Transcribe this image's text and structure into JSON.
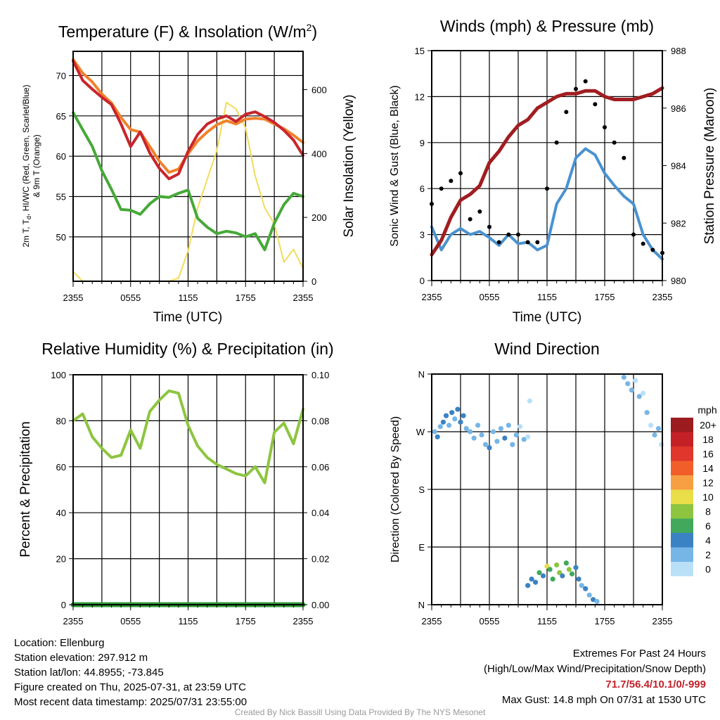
{
  "chart_data": [
    {
      "type": "line",
      "title": "Temperature (F) & Insolation (W/m²)",
      "title_parts": [
        "Temperature (F) & Insolation (W/m",
        "2",
        ")"
      ],
      "xlabel": "Time (UTC)",
      "ylabel_lines": [
        "2m T, Tₐ, HI/WC (Red, Green, Scarlet/Blue)",
        "& 9m T (Orange)"
      ],
      "ylabel_parts": [
        "2m T, T",
        "d",
        ", HI/WC (Red, Green, Scarlet/Blue)"
      ],
      "ylabel_line2": "& 9m T (Orange)",
      "y2label": "Solar Insolation (Yellow)",
      "x_ticks": [
        "2355",
        "0555",
        "1155",
        "1755",
        "2355"
      ],
      "x": [
        0,
        1,
        2,
        3,
        4,
        5,
        6,
        7,
        8,
        9,
        10,
        11,
        12,
        13,
        14,
        15,
        16,
        17,
        18,
        19,
        20,
        21,
        22,
        23,
        24
      ],
      "ylim": [
        44.5,
        73
      ],
      "y_ticks": [
        50,
        55,
        60,
        65,
        70
      ],
      "y2lim": [
        0,
        720
      ],
      "y2_ticks": [
        0,
        200,
        400,
        600
      ],
      "series": [
        {
          "name": "2m T",
          "color": "#c9252c",
          "axis": "left",
          "values": [
            71.8,
            69.4,
            68.3,
            67.3,
            66.4,
            64.0,
            61.2,
            63.0,
            60.4,
            58.5,
            57.2,
            57.8,
            60.6,
            62.7,
            64.0,
            64.6,
            65.0,
            64.3,
            65.2,
            65.5,
            64.9,
            64.2,
            63.2,
            62.0,
            60.1
          ]
        },
        {
          "name": "9m T",
          "color": "#f0822d",
          "axis": "left",
          "values": [
            72.0,
            70.3,
            69.2,
            67.7,
            66.6,
            64.8,
            63.3,
            63.0,
            61.2,
            59.4,
            58.0,
            58.4,
            60.3,
            61.9,
            63.0,
            63.9,
            64.4,
            64.0,
            64.6,
            64.7,
            64.6,
            64.0,
            63.4,
            62.6,
            61.7
          ]
        },
        {
          "name": "Td",
          "color": "#46a938",
          "axis": "left",
          "values": [
            65.4,
            63.3,
            61.2,
            58.2,
            55.9,
            53.4,
            53.3,
            52.8,
            54.1,
            55.0,
            54.9,
            55.4,
            55.8,
            52.3,
            51.2,
            50.4,
            50.7,
            50.5,
            50.0,
            50.4,
            48.4,
            51.7,
            54.0,
            55.4,
            55.0
          ]
        },
        {
          "name": "Solar Insolation",
          "color": "#f2dc5a",
          "axis": "right",
          "values": [
            30,
            0,
            0,
            0,
            0,
            0,
            0,
            0,
            0,
            0,
            0,
            10,
            95,
            230,
            320,
            410,
            560,
            540,
            480,
            330,
            230,
            180,
            60,
            100,
            40
          ]
        }
      ]
    },
    {
      "type": "line",
      "title": "Winds (mph) & Pressure (mb)",
      "xlabel": "Time (UTC)",
      "ylabel": "Sonic Wind & Gust (Blue, Black)",
      "y2label": "Station Pressure (Maroon)",
      "x_ticks": [
        "2355",
        "0555",
        "1155",
        "1755",
        "2355"
      ],
      "x": [
        0,
        1,
        2,
        3,
        4,
        5,
        6,
        7,
        8,
        9,
        10,
        11,
        12,
        13,
        14,
        15,
        16,
        17,
        18,
        19,
        20,
        21,
        22,
        23,
        24
      ],
      "ylim": [
        0,
        15
      ],
      "y_ticks": [
        0,
        3,
        6,
        9,
        12,
        15
      ],
      "y2lim": [
        980,
        988
      ],
      "y2_ticks": [
        980,
        982,
        984,
        986,
        988
      ],
      "series": [
        {
          "name": "Sonic Wind",
          "color": "#4a92cf",
          "axis": "left",
          "values": [
            3.5,
            2.0,
            3.0,
            3.4,
            3.0,
            3.2,
            2.8,
            2.3,
            3.0,
            2.4,
            2.5,
            2.0,
            2.3,
            5.0,
            6.0,
            8.0,
            8.6,
            8.2,
            7.0,
            6.2,
            5.5,
            5.0,
            3.0,
            2.0,
            1.4
          ]
        },
        {
          "name": "Gust",
          "color": "#000000",
          "axis": "left",
          "values": [
            5.0,
            6.0,
            6.5,
            7.0,
            4.0,
            4.5,
            3.5,
            2.5,
            3.0,
            3.0,
            2.5,
            2.5,
            6.0,
            9.0,
            11.0,
            12.5,
            13.0,
            11.5,
            10.0,
            9.0,
            8.0,
            3.0,
            2.4,
            2.0,
            1.8
          ]
        },
        {
          "name": "Station Pressure",
          "color": "#a11d21",
          "axis": "right",
          "values": [
            980.9,
            981.4,
            982.2,
            982.8,
            983.0,
            983.3,
            984.1,
            984.5,
            985.0,
            985.4,
            985.6,
            986.0,
            986.2,
            986.4,
            986.5,
            986.5,
            986.6,
            986.6,
            986.4,
            986.3,
            986.3,
            986.3,
            986.4,
            986.5,
            986.7
          ]
        }
      ]
    },
    {
      "type": "line",
      "title": "Relative Humidity (%) & Precipitation (in)",
      "ylabel": "Percent & Precipitation",
      "x_ticks": [
        "2355",
        "0555",
        "1155",
        "1755",
        "2355"
      ],
      "x": [
        0,
        1,
        2,
        3,
        4,
        5,
        6,
        7,
        8,
        9,
        10,
        11,
        12,
        13,
        14,
        15,
        16,
        17,
        18,
        19,
        20,
        21,
        22,
        23,
        24
      ],
      "ylim": [
        0,
        100
      ],
      "y_ticks": [
        0,
        20,
        40,
        60,
        80,
        100
      ],
      "y2lim": [
        0,
        0.1
      ],
      "y2_ticks": [
        "0.00",
        "0.02",
        "0.04",
        "0.06",
        "0.08",
        "0.10"
      ],
      "series": [
        {
          "name": "Relative Humidity",
          "color": "#8dc540",
          "axis": "left",
          "values": [
            80,
            83,
            73,
            68,
            64,
            65,
            76,
            68,
            84,
            89,
            93,
            92,
            78,
            69,
            64,
            61,
            59,
            57,
            56,
            60,
            53,
            75,
            79,
            70,
            85
          ]
        },
        {
          "name": "Precipitation",
          "color": "#2f9a3a",
          "axis": "right",
          "values": [
            0,
            0,
            0,
            0,
            0,
            0,
            0,
            0,
            0,
            0,
            0,
            0,
            0,
            0,
            0,
            0,
            0,
            0,
            0,
            0,
            0,
            0,
            0,
            0,
            0
          ]
        }
      ]
    },
    {
      "type": "scatter",
      "title": "Wind Direction",
      "ylabel": "Direction (Colored By Speed)",
      "x_ticks": [
        "2355",
        "0555",
        "1155",
        "1755",
        "2355"
      ],
      "ylim": [
        0,
        360
      ],
      "y_ticks": [
        "N",
        "E",
        "S",
        "W",
        "N"
      ],
      "points": [
        {
          "x": 0.3,
          "y": 270,
          "v": 3
        },
        {
          "x": 0.6,
          "y": 262,
          "v": 4
        },
        {
          "x": 0.9,
          "y": 278,
          "v": 3
        },
        {
          "x": 1.2,
          "y": 285,
          "v": 4
        },
        {
          "x": 1.5,
          "y": 295,
          "v": 5
        },
        {
          "x": 1.8,
          "y": 280,
          "v": 3
        },
        {
          "x": 2.1,
          "y": 300,
          "v": 4
        },
        {
          "x": 2.4,
          "y": 290,
          "v": 3
        },
        {
          "x": 2.7,
          "y": 305,
          "v": 5
        },
        {
          "x": 3.0,
          "y": 285,
          "v": 4
        },
        {
          "x": 3.3,
          "y": 295,
          "v": 4
        },
        {
          "x": 3.6,
          "y": 275,
          "v": 3
        },
        {
          "x": 4.0,
          "y": 270,
          "v": 2
        },
        {
          "x": 4.4,
          "y": 260,
          "v": 3
        },
        {
          "x": 4.8,
          "y": 280,
          "v": 2
        },
        {
          "x": 5.2,
          "y": 265,
          "v": 3
        },
        {
          "x": 5.6,
          "y": 250,
          "v": 2
        },
        {
          "x": 6.0,
          "y": 245,
          "v": 4
        },
        {
          "x": 6.4,
          "y": 270,
          "v": 3
        },
        {
          "x": 6.8,
          "y": 255,
          "v": 2
        },
        {
          "x": 7.2,
          "y": 275,
          "v": 3
        },
        {
          "x": 7.6,
          "y": 260,
          "v": 4
        },
        {
          "x": 8.0,
          "y": 280,
          "v": 2
        },
        {
          "x": 8.4,
          "y": 250,
          "v": 3
        },
        {
          "x": 8.8,
          "y": 265,
          "v": 2
        },
        {
          "x": 9.2,
          "y": 278,
          "v": 1
        },
        {
          "x": 9.6,
          "y": 258,
          "v": 3
        },
        {
          "x": 10.0,
          "y": 262,
          "v": 1
        },
        {
          "x": 10.2,
          "y": 318,
          "v": 1
        },
        {
          "x": 10.0,
          "y": 30,
          "v": 4
        },
        {
          "x": 10.4,
          "y": 40,
          "v": 4
        },
        {
          "x": 10.8,
          "y": 35,
          "v": 5
        },
        {
          "x": 11.2,
          "y": 50,
          "v": 6
        },
        {
          "x": 11.6,
          "y": 45,
          "v": 4
        },
        {
          "x": 12.0,
          "y": 60,
          "v": 10
        },
        {
          "x": 12.3,
          "y": 55,
          "v": 7
        },
        {
          "x": 12.6,
          "y": 40,
          "v": 6
        },
        {
          "x": 13.0,
          "y": 62,
          "v": 8
        },
        {
          "x": 13.3,
          "y": 50,
          "v": 9
        },
        {
          "x": 13.6,
          "y": 45,
          "v": 5
        },
        {
          "x": 14.0,
          "y": 65,
          "v": 6
        },
        {
          "x": 14.3,
          "y": 55,
          "v": 8
        },
        {
          "x": 14.6,
          "y": 48,
          "v": 7
        },
        {
          "x": 15.0,
          "y": 58,
          "v": 5
        },
        {
          "x": 15.3,
          "y": 40,
          "v": 4
        },
        {
          "x": 15.6,
          "y": 30,
          "v": 3
        },
        {
          "x": 16.0,
          "y": 25,
          "v": 4
        },
        {
          "x": 16.4,
          "y": 15,
          "v": 3
        },
        {
          "x": 16.8,
          "y": 8,
          "v": 4
        },
        {
          "x": 17.2,
          "y": 5,
          "v": 2
        },
        {
          "x": 20.0,
          "y": 355,
          "v": 2
        },
        {
          "x": 20.4,
          "y": 345,
          "v": 3
        },
        {
          "x": 20.8,
          "y": 335,
          "v": 2
        },
        {
          "x": 21.2,
          "y": 350,
          "v": 1
        },
        {
          "x": 21.6,
          "y": 325,
          "v": 3
        },
        {
          "x": 22.0,
          "y": 330,
          "v": 1
        },
        {
          "x": 22.4,
          "y": 300,
          "v": 2
        },
        {
          "x": 22.8,
          "y": 280,
          "v": 1
        },
        {
          "x": 23.2,
          "y": 265,
          "v": 2
        },
        {
          "x": 23.6,
          "y": 275,
          "v": 3
        },
        {
          "x": 23.9,
          "y": 250,
          "v": 1
        }
      ],
      "legend_title": "mph",
      "legend": [
        {
          "label": "20+",
          "color": "#9c1b1e"
        },
        {
          "label": "18",
          "color": "#c42127"
        },
        {
          "label": "16",
          "color": "#e0362b"
        },
        {
          "label": "14",
          "color": "#f15e2a"
        },
        {
          "label": "12",
          "color": "#f7a043"
        },
        {
          "label": "10",
          "color": "#e9de48"
        },
        {
          "label": "8",
          "color": "#8dc540"
        },
        {
          "label": "6",
          "color": "#42a85c"
        },
        {
          "label": "4",
          "color": "#3b82c4"
        },
        {
          "label": "2",
          "color": "#76b6e6"
        },
        {
          "label": "0",
          "color": "#b9e0f8"
        }
      ]
    }
  ],
  "info": {
    "location": "Location: Ellenburg",
    "elevation": "Station elevation: 297.912 m",
    "latlon": "Station lat/lon: 44.8955; -73.845",
    "created": "Figure created on Thu, 2025-07-31, at 23:59 UTC",
    "recent": "Most recent data timestamp: 2025/07/31 23:55:00"
  },
  "extremes": {
    "title": "Extremes For Past 24 Hours",
    "subtitle": "(High/Low/Max Wind/Precipitation/Snow Depth)",
    "values": "71.7/56.4/10.1/0/-999",
    "gust": "Max Gust: 14.8 mph On 07/31 at 1530 UTC"
  },
  "credit": "Created By Nick Bassill Using Data Provided By The NYS Mesonet"
}
